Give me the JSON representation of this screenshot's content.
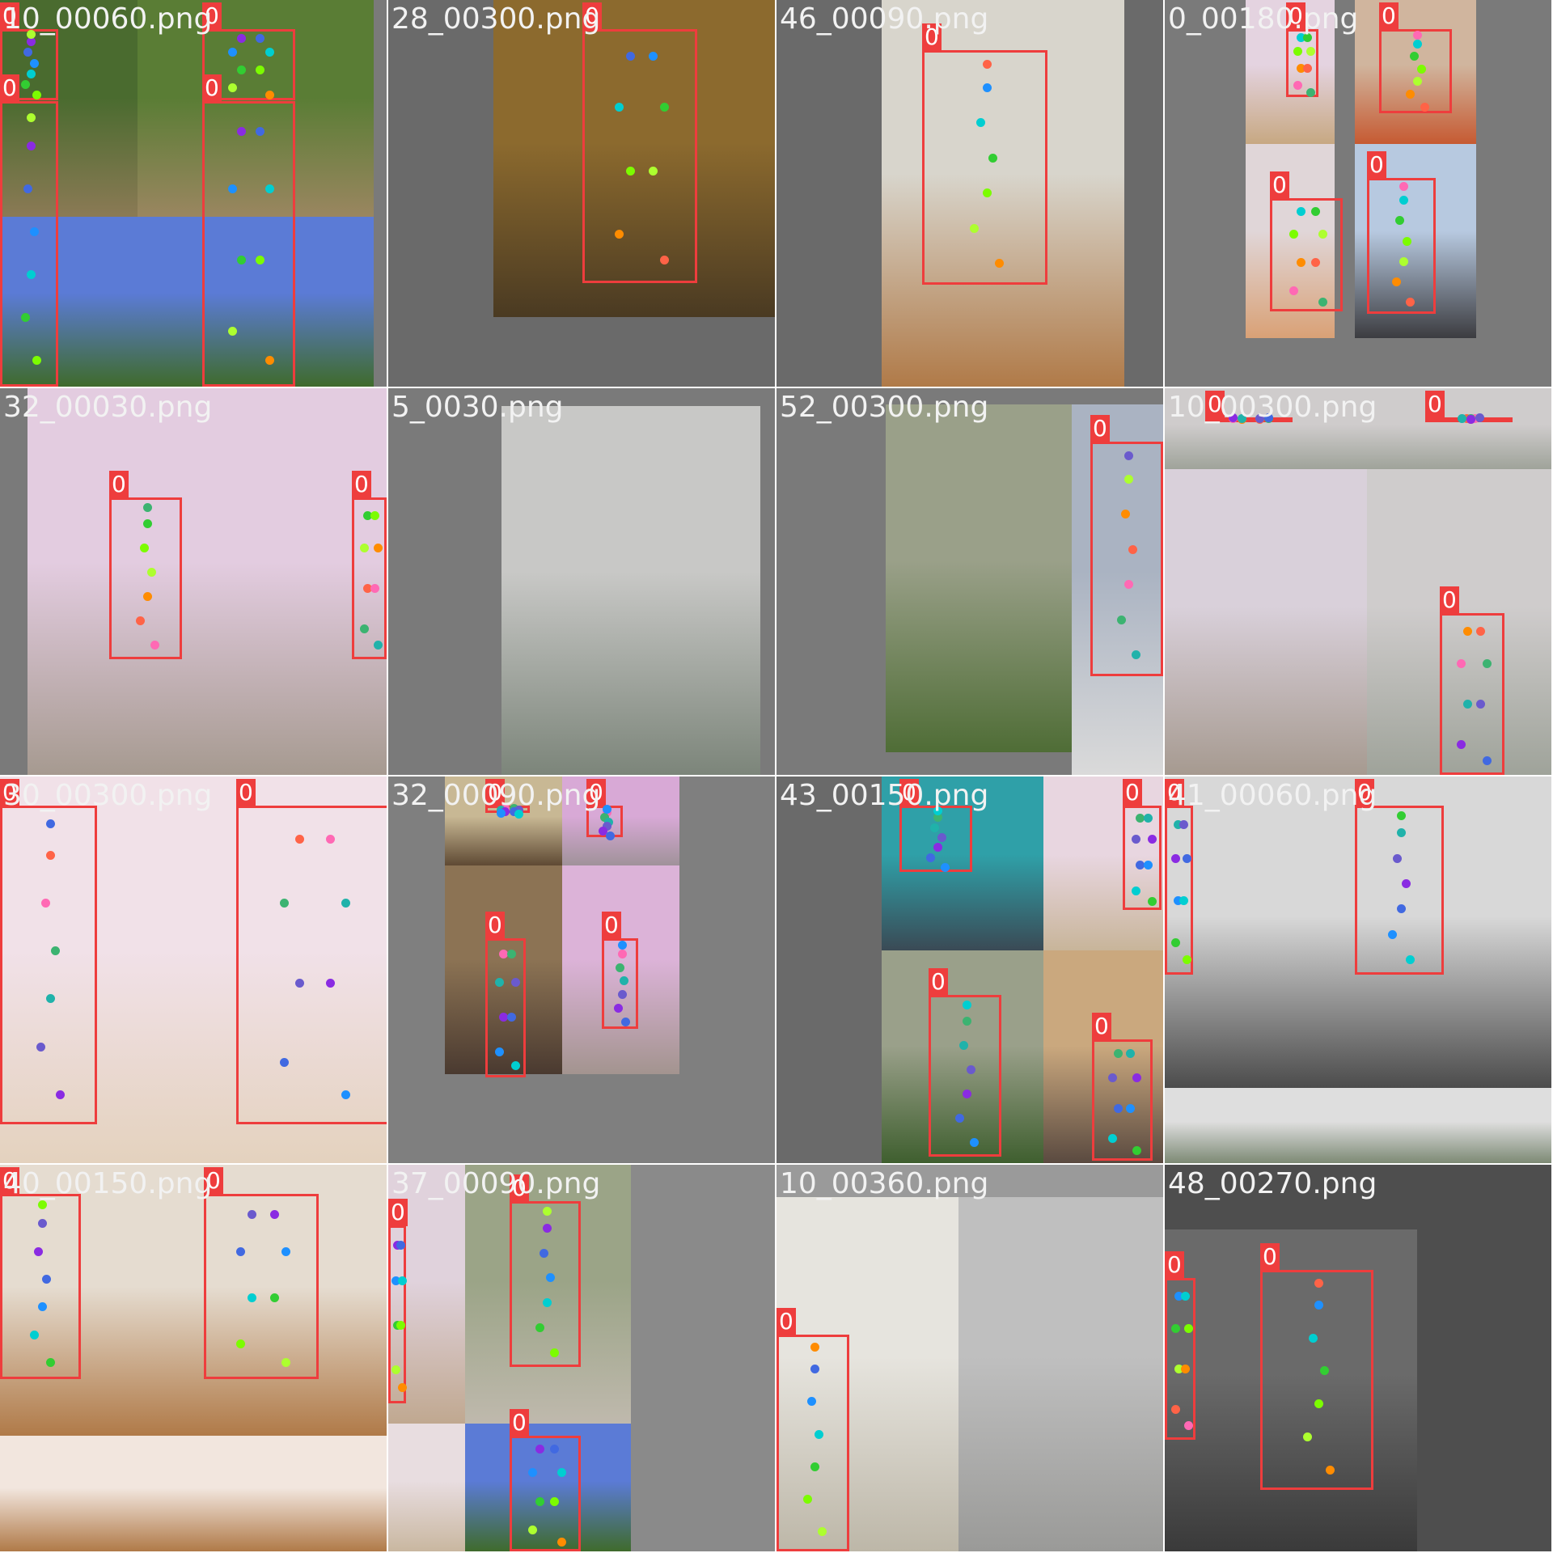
{
  "label": "0",
  "keypoint_colors": [
    "#8a2be2",
    "#4169e1",
    "#1e90ff",
    "#00ced1",
    "#32cd32",
    "#7cfc00",
    "#adff2f",
    "#ff8c00",
    "#ff6347",
    "#ff69b4",
    "#3cb371",
    "#20b2aa",
    "#6a5acd"
  ],
  "tiles": [
    {
      "name": "10_00060.png",
      "bg": "#7a7a7a",
      "photos": [
        {
          "c": "#4a6b2f",
          "c2": "#8b7a55"
        },
        {
          "c": "#5a7d35",
          "c2": "#9a8660"
        },
        {
          "c": "#5b7bd6",
          "c2": "#3f6b2c"
        },
        {
          "c": "#5b7bd6",
          "c2": "#3f6b2c"
        }
      ]
    },
    {
      "name": "28_00300.png",
      "bg": "#6a6a6a",
      "photos": [
        {
          "c": "#8c6a2e",
          "c2": "#4a3a22"
        }
      ]
    },
    {
      "name": "46_00090.png",
      "bg": "#6a6a6a",
      "photos": [
        {
          "c": "#d8d5cc",
          "c2": "#b07a48"
        }
      ]
    },
    {
      "name": "0_00180.png",
      "bg": "#7a7a7a",
      "photos": [
        {
          "c": "#e4d3e0",
          "c2": "#c7a882"
        },
        {
          "c": "#d0b59e",
          "c2": "#c65a32"
        },
        {
          "c": "#e0d6d8",
          "c2": "#d9a176"
        },
        {
          "c": "#b7c9e0",
          "c2": "#3c3c40"
        }
      ]
    },
    {
      "name": "32_00030.png",
      "bg": "#7a7a7a",
      "photos": [
        {
          "c": "#e3cce0",
          "c2": "#a69a90"
        },
        {
          "c": "#e3cce0",
          "c2": "#a69a90"
        }
      ]
    },
    {
      "name": "5_0030.png",
      "bg": "#7a7a7a",
      "photos": [
        {
          "c": "#c8c8c6",
          "c2": "#7c857a"
        }
      ]
    },
    {
      "name": "52_00300.png",
      "bg": "#7a7a7a",
      "photos": [
        {
          "c": "#9aa089",
          "c2": "#4f6d36"
        },
        {
          "c": "#aab3c2",
          "c2": "#dadada"
        }
      ]
    },
    {
      "name": "10_00300.png",
      "bg": "#7a7a7a",
      "photos": [
        {
          "c": "#cfcccc",
          "c2": "#9fa39a"
        },
        {
          "c": "#d9d0da",
          "c2": "#a69a90"
        }
      ]
    },
    {
      "name": "30_00300.png",
      "bg": "#7a7a7a",
      "photos": [
        {
          "c": "#f1e1e8",
          "c2": "#e4d2be"
        }
      ]
    },
    {
      "name": "32_00090.png",
      "bg": "#7f7f7f",
      "photos": [
        {
          "c": "#c8b894",
          "c2": "#5f4a34"
        },
        {
          "c": "#d8a9d6",
          "c2": "#a0929a"
        },
        {
          "c": "#8c7354",
          "c2": "#4a3a30"
        },
        {
          "c": "#dcb3d8",
          "c2": "#a3948f"
        }
      ]
    },
    {
      "name": "43_00150.png",
      "bg": "#6a6a6a",
      "photos": [
        {
          "c": "#2fa0a8",
          "c2": "#3a4a55"
        },
        {
          "c": "#e8d6e0",
          "c2": "#c8b59a"
        },
        {
          "c": "#9aa08a",
          "c2": "#3f5f2f"
        },
        {
          "c": "#caa87e",
          "c2": "#5a4a40"
        }
      ]
    },
    {
      "name": "41_00060.png",
      "bg": "#5e5e5e",
      "photos": [
        {
          "c": "#d8d8d8",
          "c2": "#4c4c4c"
        },
        {
          "c": "#dedede",
          "c2": "#7d8a75"
        }
      ]
    },
    {
      "name": "40_00150.png",
      "bg": "#7a7a7a",
      "photos": [
        {
          "c": "#e5dcd0",
          "c2": "#b07a48"
        },
        {
          "c": "#f2e6de",
          "c2": "#b07a48"
        },
        {
          "c": "#f0e2d2",
          "c2": "#cfae90"
        },
        {
          "c": "#5b7bd6",
          "c2": "#3f6b2c"
        }
      ]
    },
    {
      "name": "37_00090.png",
      "bg": "#8a8a8a",
      "photos": [
        {
          "c": "#e0d2dc",
          "c2": "#c0a890"
        },
        {
          "c": "#9ba487",
          "c2": "#bfb9ad"
        },
        {
          "c": "#e8dde0",
          "c2": "#c9b7a0"
        },
        {
          "c": "#5b7bd6",
          "c2": "#3f6b2c"
        }
      ]
    },
    {
      "name": "10_00360.png",
      "bg": "#9a9a9a",
      "photos": [
        {
          "c": "#e6e4de",
          "c2": "#bdb7a8"
        },
        {
          "c": "#bfbfbf",
          "c2": "#9a9a98"
        }
      ]
    },
    {
      "name": "48_00270.png",
      "bg": "#4e4e4e",
      "photos": [
        {
          "c": "#6a6a6a",
          "c2": "#3a3a3a"
        },
        {
          "c": "#9cb0c6",
          "c2": "#3f4a55"
        }
      ]
    }
  ]
}
